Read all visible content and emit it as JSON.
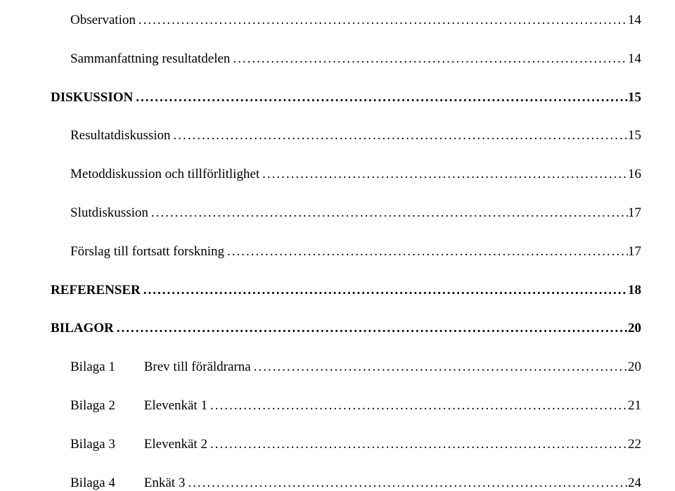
{
  "colors": {
    "text": "#000000",
    "background": "#ffffff"
  },
  "typography": {
    "font_family": "Times New Roman",
    "sub_fontsize_pt": 14,
    "main_fontsize_pt": 14,
    "main_fontweight": "bold"
  },
  "toc": {
    "entries": [
      {
        "level": "sub",
        "label": "Observation",
        "page": "14"
      },
      {
        "level": "sub",
        "label": "Sammanfattning resultatdelen",
        "page": "14"
      },
      {
        "level": "main",
        "label": "DISKUSSION",
        "page": "15"
      },
      {
        "level": "sub",
        "label": "Resultatdiskussion",
        "page": "15"
      },
      {
        "level": "sub",
        "label": "Metoddiskussion och tillförlitlighet",
        "page": "16"
      },
      {
        "level": "sub",
        "label": "Slutdiskussion",
        "page": "17"
      },
      {
        "level": "sub",
        "label": "Förslag till fortsatt forskning",
        "page": "17"
      },
      {
        "level": "main",
        "label": "REFERENSER",
        "page": "18"
      },
      {
        "level": "main",
        "label": "BILAGOR",
        "page": "20"
      },
      {
        "level": "bilaga",
        "key": "Bilaga 1",
        "label": "Brev till föräldrarna",
        "page": "20"
      },
      {
        "level": "bilaga",
        "key": "Bilaga 2",
        "label": "Elevenkät 1",
        "page": "21"
      },
      {
        "level": "bilaga",
        "key": "Bilaga 3",
        "label": "Elevenkät 2",
        "page": "22"
      },
      {
        "level": "bilaga",
        "key": "Bilaga 4",
        "label": "Enkät 3",
        "page": "24"
      }
    ]
  }
}
